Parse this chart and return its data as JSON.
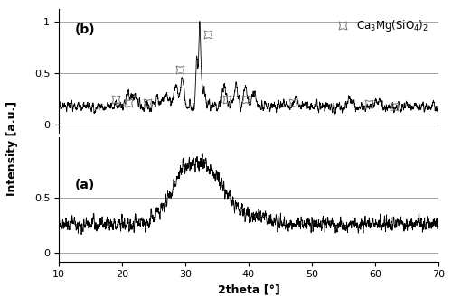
{
  "xlabel": "2theta [°]",
  "ylabel": "Intensity [a.u.]",
  "xmin": 10,
  "xmax": 70,
  "legend_label": "Ca$_3$Mg(SiO$_4$)$_2$",
  "star_positions_b": [
    19.0,
    21.0,
    24.0,
    29.2,
    33.5,
    36.5,
    39.5,
    47.0,
    59.0,
    63.0
  ],
  "star_positions_b_y": [
    0.24,
    0.21,
    0.21,
    0.53,
    0.87,
    0.24,
    0.24,
    0.21,
    0.2,
    0.17
  ],
  "label_a": "(a)",
  "label_b": "(b)",
  "seed_b": 17,
  "seed_a": 99
}
